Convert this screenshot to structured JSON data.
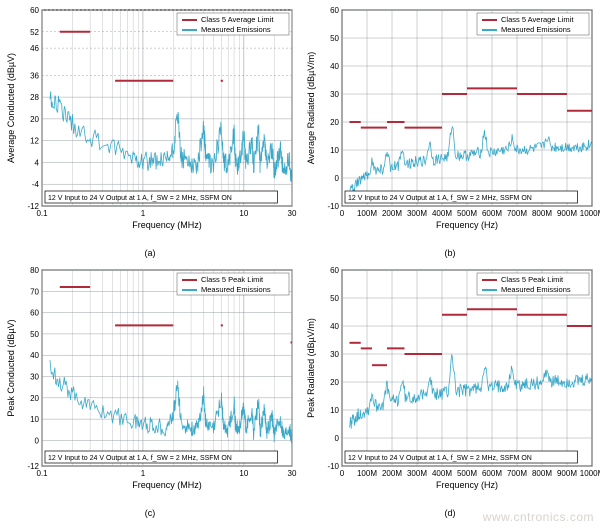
{
  "colors": {
    "limit": "#b02a3a",
    "emissions": "#3aa9c9",
    "frame": "#000000",
    "grid": "#9aa0a6",
    "bg": "#ffffff"
  },
  "legend": {
    "avg_limit": "Class 5 Average Limit",
    "peak_limit": "Class 5 Peak Limit",
    "emissions": "Measured Emissions"
  },
  "caption_box": "12 V Input to 24 V Output at 1 A, f_SW = 2 MHz, SSFM ON",
  "panels": {
    "a": {
      "sub": "(a)",
      "xlabel": "Frequency (MHz)",
      "ylabel": "Average Conducted (dBµV)",
      "xscale": "log",
      "xlim": [
        0.1,
        30
      ],
      "ylim": [
        -12,
        60
      ],
      "xticks": [
        0.1,
        1,
        10,
        30
      ],
      "yticks": [
        -12,
        -4,
        4,
        12,
        20,
        28,
        36,
        46,
        52,
        60
      ],
      "ygrid_dashed": [
        36,
        46,
        52,
        60
      ],
      "limits": [
        {
          "x0": 0.15,
          "x1": 0.3,
          "y": 52
        },
        {
          "x0": 0.53,
          "x1": 2.0,
          "y": 34
        },
        {
          "x0": 5.9,
          "x1": 6.2,
          "y": 34
        }
      ],
      "emission_base": [
        [
          0.12,
          28
        ],
        [
          0.15,
          24
        ],
        [
          0.2,
          18
        ],
        [
          0.3,
          13
        ],
        [
          0.5,
          9
        ],
        [
          0.8,
          6
        ],
        [
          1.0,
          5
        ],
        [
          1.3,
          4
        ],
        [
          1.7,
          4
        ],
        [
          2.0,
          8
        ],
        [
          2.2,
          22
        ],
        [
          2.4,
          6
        ],
        [
          3.0,
          4
        ],
        [
          3.5,
          3
        ],
        [
          4.0,
          18
        ],
        [
          4.2,
          5
        ],
        [
          5.0,
          3
        ],
        [
          6.0,
          16
        ],
        [
          6.3,
          4
        ],
        [
          7.0,
          3
        ],
        [
          8.0,
          15
        ],
        [
          8.3,
          4
        ],
        [
          9.0,
          3
        ],
        [
          10,
          14
        ],
        [
          10.5,
          3
        ],
        [
          12,
          12
        ],
        [
          12.5,
          2
        ],
        [
          14,
          16
        ],
        [
          14.5,
          2
        ],
        [
          16,
          12
        ],
        [
          17,
          2
        ],
        [
          19,
          10
        ],
        [
          20,
          1
        ],
        [
          23,
          8
        ],
        [
          25,
          0
        ],
        [
          28,
          5
        ],
        [
          30,
          -2
        ]
      ],
      "emission_noise": 4
    },
    "b": {
      "sub": "(b)",
      "xlabel": "Frequency (Hz)",
      "ylabel": "Average Radiated (dBµV/m)",
      "xscale": "linear",
      "xlim": [
        0,
        1000
      ],
      "ylim": [
        -10,
        60
      ],
      "xticks_labels": [
        "0",
        "100M",
        "200M",
        "300M",
        "400M",
        "500M",
        "600M",
        "700M",
        "800M",
        "900M",
        "1000M"
      ],
      "xticks": [
        0,
        100,
        200,
        300,
        400,
        500,
        600,
        700,
        800,
        900,
        1000
      ],
      "yticks": [
        -10,
        0,
        10,
        20,
        30,
        40,
        50,
        60
      ],
      "limits": [
        [
          30,
          75,
          20
        ],
        [
          75,
          120,
          18
        ],
        [
          120,
          180,
          18
        ],
        [
          180,
          250,
          20
        ],
        [
          250,
          400,
          18
        ],
        [
          400,
          500,
          30
        ],
        [
          500,
          700,
          32
        ],
        [
          700,
          900,
          30
        ],
        [
          900,
          1000,
          24
        ]
      ],
      "emission_baseline": [
        [
          30,
          -5
        ],
        [
          60,
          -2
        ],
        [
          100,
          1
        ],
        [
          150,
          3
        ],
        [
          200,
          4
        ],
        [
          250,
          5
        ],
        [
          300,
          6
        ],
        [
          350,
          6
        ],
        [
          400,
          7
        ],
        [
          450,
          8
        ],
        [
          500,
          8
        ],
        [
          550,
          9
        ],
        [
          600,
          9
        ],
        [
          650,
          10
        ],
        [
          700,
          10
        ],
        [
          750,
          10
        ],
        [
          800,
          11
        ],
        [
          850,
          11
        ],
        [
          900,
          11
        ],
        [
          950,
          11
        ],
        [
          1000,
          12
        ]
      ],
      "spikes": [
        [
          120,
          4
        ],
        [
          180,
          5
        ],
        [
          240,
          6
        ],
        [
          350,
          7
        ],
        [
          440,
          12
        ],
        [
          570,
          8
        ],
        [
          680,
          5
        ],
        [
          820,
          4
        ]
      ],
      "emission_noise": 2
    },
    "c": {
      "sub": "(c)",
      "xlabel": "Frequency (MHz)",
      "ylabel": "Peak Conducted (dBµV)",
      "xscale": "log",
      "xlim": [
        0.1,
        30
      ],
      "ylim": [
        -12,
        80
      ],
      "xticks": [
        0.1,
        1,
        10,
        30
      ],
      "yticks": [
        -12,
        0,
        10,
        20,
        30,
        40,
        50,
        60,
        70,
        80
      ],
      "limits": [
        {
          "x0": 0.15,
          "x1": 0.3,
          "y": 72
        },
        {
          "x0": 0.53,
          "x1": 2.0,
          "y": 54
        },
        {
          "x0": 5.9,
          "x1": 6.2,
          "y": 54
        },
        {
          "x0": 29,
          "x1": 30,
          "y": 46
        }
      ],
      "emission_base": [
        [
          0.12,
          34
        ],
        [
          0.15,
          28
        ],
        [
          0.2,
          22
        ],
        [
          0.3,
          16
        ],
        [
          0.5,
          12
        ],
        [
          0.8,
          9
        ],
        [
          1.0,
          8
        ],
        [
          1.3,
          7
        ],
        [
          1.7,
          6
        ],
        [
          2.0,
          12
        ],
        [
          2.2,
          26
        ],
        [
          2.4,
          8
        ],
        [
          3.0,
          6
        ],
        [
          3.5,
          5
        ],
        [
          4.0,
          22
        ],
        [
          4.2,
          7
        ],
        [
          5.0,
          5
        ],
        [
          6.0,
          20
        ],
        [
          6.3,
          6
        ],
        [
          7.0,
          5
        ],
        [
          8.0,
          18
        ],
        [
          8.3,
          6
        ],
        [
          9.0,
          5
        ],
        [
          10,
          16
        ],
        [
          10.5,
          5
        ],
        [
          12,
          14
        ],
        [
          12.5,
          4
        ],
        [
          14,
          18
        ],
        [
          14.5,
          4
        ],
        [
          16,
          14
        ],
        [
          17,
          4
        ],
        [
          19,
          12
        ],
        [
          20,
          3
        ],
        [
          23,
          10
        ],
        [
          25,
          2
        ],
        [
          28,
          7
        ],
        [
          30,
          0
        ]
      ],
      "emission_noise": 4
    },
    "d": {
      "sub": "(d)",
      "xlabel": "Frequency (Hz)",
      "ylabel": "Peak Radiated (dBµV/m)",
      "xscale": "linear",
      "xlim": [
        0,
        1000
      ],
      "ylim": [
        -10,
        60
      ],
      "xticks_labels": [
        "0",
        "100M",
        "200M",
        "300M",
        "400M",
        "500M",
        "600M",
        "700M",
        "800M",
        "900M",
        "1000M"
      ],
      "xticks": [
        0,
        100,
        200,
        300,
        400,
        500,
        600,
        700,
        800,
        900,
        1000
      ],
      "yticks": [
        -10,
        0,
        10,
        20,
        30,
        40,
        50,
        60
      ],
      "limits": [
        [
          30,
          75,
          34
        ],
        [
          75,
          120,
          32
        ],
        [
          120,
          180,
          26
        ],
        [
          180,
          250,
          32
        ],
        [
          250,
          400,
          30
        ],
        [
          400,
          500,
          44
        ],
        [
          500,
          700,
          46
        ],
        [
          700,
          900,
          44
        ],
        [
          900,
          1000,
          40
        ]
      ],
      "emission_baseline": [
        [
          30,
          5
        ],
        [
          60,
          8
        ],
        [
          100,
          10
        ],
        [
          150,
          12
        ],
        [
          200,
          13
        ],
        [
          250,
          14
        ],
        [
          300,
          15
        ],
        [
          350,
          15
        ],
        [
          400,
          16
        ],
        [
          450,
          17
        ],
        [
          500,
          17
        ],
        [
          550,
          18
        ],
        [
          600,
          18
        ],
        [
          650,
          19
        ],
        [
          700,
          19
        ],
        [
          750,
          19
        ],
        [
          800,
          20
        ],
        [
          850,
          20
        ],
        [
          900,
          20
        ],
        [
          950,
          20
        ],
        [
          1000,
          21
        ]
      ],
      "spikes": [
        [
          120,
          5
        ],
        [
          180,
          6
        ],
        [
          240,
          7
        ],
        [
          350,
          8
        ],
        [
          440,
          14
        ],
        [
          570,
          9
        ],
        [
          680,
          6
        ],
        [
          820,
          5
        ]
      ],
      "emission_noise": 2.5
    }
  },
  "watermark": "www.cntronics.com"
}
